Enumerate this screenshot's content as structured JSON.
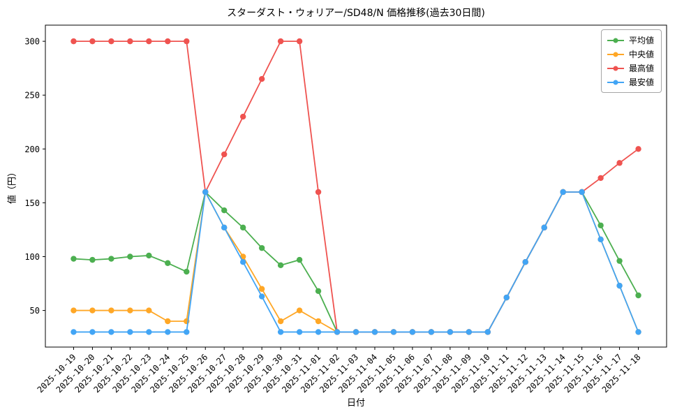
{
  "chart_data": {
    "type": "line",
    "title": "スターダスト・ウォリアー/SD48/N 価格推移(過去30日間)",
    "xlabel": "日付",
    "ylabel": "値（円）",
    "grid": false,
    "legend_position": "upper right",
    "ylim": [
      16,
      315
    ],
    "yticks": [
      50,
      100,
      150,
      200,
      250,
      300
    ],
    "x": [
      "2025-10-19",
      "2025-10-20",
      "2025-10-21",
      "2025-10-22",
      "2025-10-23",
      "2025-10-24",
      "2025-10-25",
      "2025-10-26",
      "2025-10-27",
      "2025-10-28",
      "2025-10-29",
      "2025-10-30",
      "2025-10-31",
      "2025-11-01",
      "2025-11-02",
      "2025-11-03",
      "2025-11-04",
      "2025-11-05",
      "2025-11-06",
      "2025-11-07",
      "2025-11-08",
      "2025-11-09",
      "2025-11-10",
      "2025-11-11",
      "2025-11-12",
      "2025-11-13",
      "2025-11-14",
      "2025-11-15",
      "2025-11-16",
      "2025-11-17",
      "2025-11-18"
    ],
    "series": [
      {
        "key": "average",
        "name": "平均値",
        "color": "#4caf50",
        "values": [
          98,
          97,
          98,
          100,
          101,
          94,
          86,
          160,
          143,
          127,
          108,
          92,
          97,
          68,
          30,
          30,
          30,
          30,
          30,
          30,
          30,
          30,
          30,
          62,
          95,
          127,
          160,
          160,
          129,
          96,
          64
        ]
      },
      {
        "key": "median",
        "name": "中央値",
        "color": "#ffa726",
        "values": [
          50,
          50,
          50,
          50,
          50,
          40,
          40,
          160,
          127,
          100,
          70,
          40,
          50,
          40,
          30,
          30,
          30,
          30,
          30,
          30,
          30,
          30,
          30,
          62,
          95,
          127,
          160,
          160,
          116,
          73,
          30
        ]
      },
      {
        "key": "max",
        "name": "最高値",
        "color": "#ef5350",
        "values": [
          300,
          300,
          300,
          300,
          300,
          300,
          300,
          160,
          195,
          230,
          265,
          300,
          300,
          160,
          30,
          30,
          30,
          30,
          30,
          30,
          30,
          30,
          30,
          62,
          95,
          127,
          160,
          160,
          173,
          187,
          200
        ]
      },
      {
        "key": "min",
        "name": "最安値",
        "color": "#42a5f5",
        "values": [
          30,
          30,
          30,
          30,
          30,
          30,
          30,
          160,
          127,
          95,
          63,
          30,
          30,
          30,
          30,
          30,
          30,
          30,
          30,
          30,
          30,
          30,
          30,
          62,
          95,
          127,
          160,
          160,
          116,
          73,
          30
        ]
      }
    ]
  }
}
